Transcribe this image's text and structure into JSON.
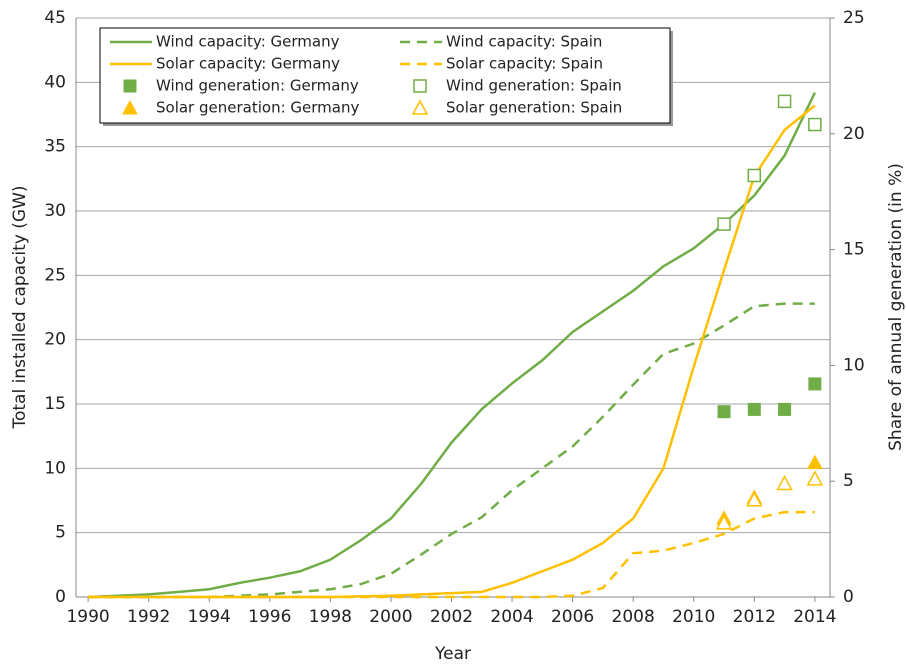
{
  "chart_data": {
    "type": "line",
    "x_label": "Year",
    "y_label": "Total installed capacity (GW)",
    "y2_label": "Share of annual generation (in %)",
    "x": [
      1990,
      1991,
      1992,
      1993,
      1994,
      1995,
      1996,
      1997,
      1998,
      1999,
      2000,
      2001,
      2002,
      2003,
      2004,
      2005,
      2006,
      2007,
      2008,
      2009,
      2010,
      2011,
      2012,
      2013,
      2014
    ],
    "xlim": [
      1989.6,
      2014.5
    ],
    "xticks": [
      1990,
      1992,
      1994,
      1996,
      1998,
      2000,
      2002,
      2004,
      2006,
      2008,
      2010,
      2012,
      2014
    ],
    "ylim": [
      0,
      45
    ],
    "yticks": [
      0,
      5,
      10,
      15,
      20,
      25,
      30,
      35,
      40,
      45
    ],
    "y2lim": [
      0,
      25
    ],
    "y2ticks": [
      0,
      5,
      10,
      15,
      20,
      25
    ],
    "grid": true,
    "legend": "upper left",
    "series": [
      {
        "name": "Wind capacity: Germany",
        "color": "#70ad47",
        "style": "solid",
        "values": [
          0,
          0.1,
          0.2,
          0.4,
          0.6,
          1.1,
          1.5,
          2.0,
          2.9,
          4.4,
          6.1,
          8.8,
          12.0,
          14.6,
          16.6,
          18.4,
          20.6,
          22.2,
          23.8,
          25.7,
          27.1,
          29.0,
          31.2,
          34.3,
          39.2
        ]
      },
      {
        "name": "Wind capacity: Spain",
        "color": "#70ad47",
        "style": "dashed",
        "values": [
          0,
          0,
          0,
          0,
          0,
          0.1,
          0.2,
          0.4,
          0.6,
          1.0,
          1.8,
          3.3,
          4.9,
          6.2,
          8.3,
          10.0,
          11.7,
          14.0,
          16.5,
          18.9,
          19.7,
          21.1,
          22.6,
          22.8,
          22.8
        ]
      },
      {
        "name": "Solar capacity: Germany",
        "color": "#ffc000",
        "style": "solid",
        "values": [
          0,
          0,
          0,
          0,
          0,
          0,
          0,
          0,
          0,
          0.05,
          0.1,
          0.2,
          0.3,
          0.4,
          1.1,
          2.0,
          2.9,
          4.2,
          6.1,
          10.0,
          17.9,
          25.4,
          32.7,
          36.3,
          38.2
        ]
      },
      {
        "name": "Solar capacity: Spain",
        "color": "#ffc000",
        "style": "dashed",
        "values": [
          0,
          0,
          0,
          0,
          0,
          0,
          0,
          0,
          0,
          0,
          0,
          0,
          0,
          0,
          0,
          0,
          0.1,
          0.7,
          3.4,
          3.6,
          4.2,
          4.9,
          6.1,
          6.6,
          6.6
        ]
      },
      {
        "name": "Wind generation: Germany",
        "color": "#70ad47",
        "marker": "square",
        "axis": "y2",
        "values": [
          null,
          null,
          null,
          null,
          null,
          null,
          null,
          null,
          null,
          null,
          null,
          null,
          null,
          null,
          null,
          null,
          null,
          null,
          null,
          null,
          null,
          8.0,
          8.1,
          8.1,
          9.2
        ]
      },
      {
        "name": "Wind generation: Spain",
        "color": "#70ad47",
        "marker": "square-open",
        "axis": "y2",
        "values": [
          null,
          null,
          null,
          null,
          null,
          null,
          null,
          null,
          null,
          null,
          null,
          null,
          null,
          null,
          null,
          null,
          null,
          null,
          null,
          null,
          null,
          16.1,
          18.2,
          21.4,
          20.4
        ]
      },
      {
        "name": "Solar generation: Germany",
        "color": "#ffc000",
        "marker": "triangle",
        "axis": "y2",
        "values": [
          null,
          null,
          null,
          null,
          null,
          null,
          null,
          null,
          null,
          null,
          null,
          null,
          null,
          null,
          null,
          null,
          null,
          null,
          null,
          null,
          null,
          3.4,
          4.3,
          4.9,
          5.8
        ]
      },
      {
        "name": "Solar generation: Spain",
        "color": "#ffc000",
        "marker": "triangle-open",
        "axis": "y2",
        "values": [
          null,
          null,
          null,
          null,
          null,
          null,
          null,
          null,
          null,
          null,
          null,
          null,
          null,
          null,
          null,
          null,
          null,
          null,
          null,
          null,
          null,
          3.2,
          4.2,
          4.9,
          5.1
        ]
      }
    ]
  }
}
